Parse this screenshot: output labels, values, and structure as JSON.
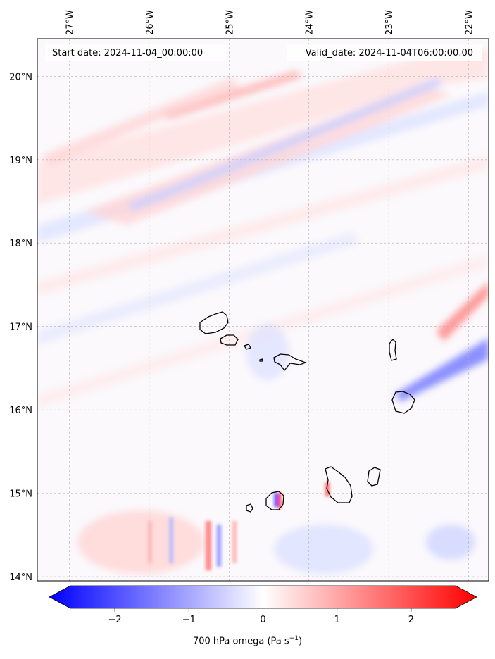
{
  "map": {
    "start_label": "Start date: 2024-11-04_00:00:00",
    "valid_label": "Valid_date: 2024-11-04T06:00:00.00",
    "extent": {
      "lon_min": -27.4,
      "lon_max": -21.75,
      "lat_min": 13.95,
      "lat_max": 20.45
    },
    "lon_ticks": [
      {
        "value": -27,
        "label": "27°W"
      },
      {
        "value": -26,
        "label": "26°W"
      },
      {
        "value": -25,
        "label": "25°W"
      },
      {
        "value": -24,
        "label": "24°W"
      },
      {
        "value": -23,
        "label": "23°W"
      },
      {
        "value": -22,
        "label": "22°W"
      }
    ],
    "lat_ticks": [
      {
        "value": 20,
        "label": "20°N"
      },
      {
        "value": 19,
        "label": "19°N"
      },
      {
        "value": 18,
        "label": "18°N"
      },
      {
        "value": 17,
        "label": "17°N"
      },
      {
        "value": 16,
        "label": "16°N"
      },
      {
        "value": 15,
        "label": "15°N"
      },
      {
        "value": 14,
        "label": "14°N"
      }
    ],
    "gridlines": true,
    "colors": {
      "negative": "#0000ff",
      "zero": "#ffffff",
      "positive": "#ff0000",
      "coast": "#000000"
    }
  },
  "colorbar": {
    "min": -2.6,
    "max": 2.6,
    "ticks": [
      {
        "value": -2,
        "label": "−2"
      },
      {
        "value": -1,
        "label": "−1"
      },
      {
        "value": 0,
        "label": "0"
      },
      {
        "value": 1,
        "label": "1"
      },
      {
        "value": 2,
        "label": "2"
      }
    ],
    "label_main": "700 hPa omega (Pa s",
    "label_exp": "−1",
    "label_end": ")"
  }
}
